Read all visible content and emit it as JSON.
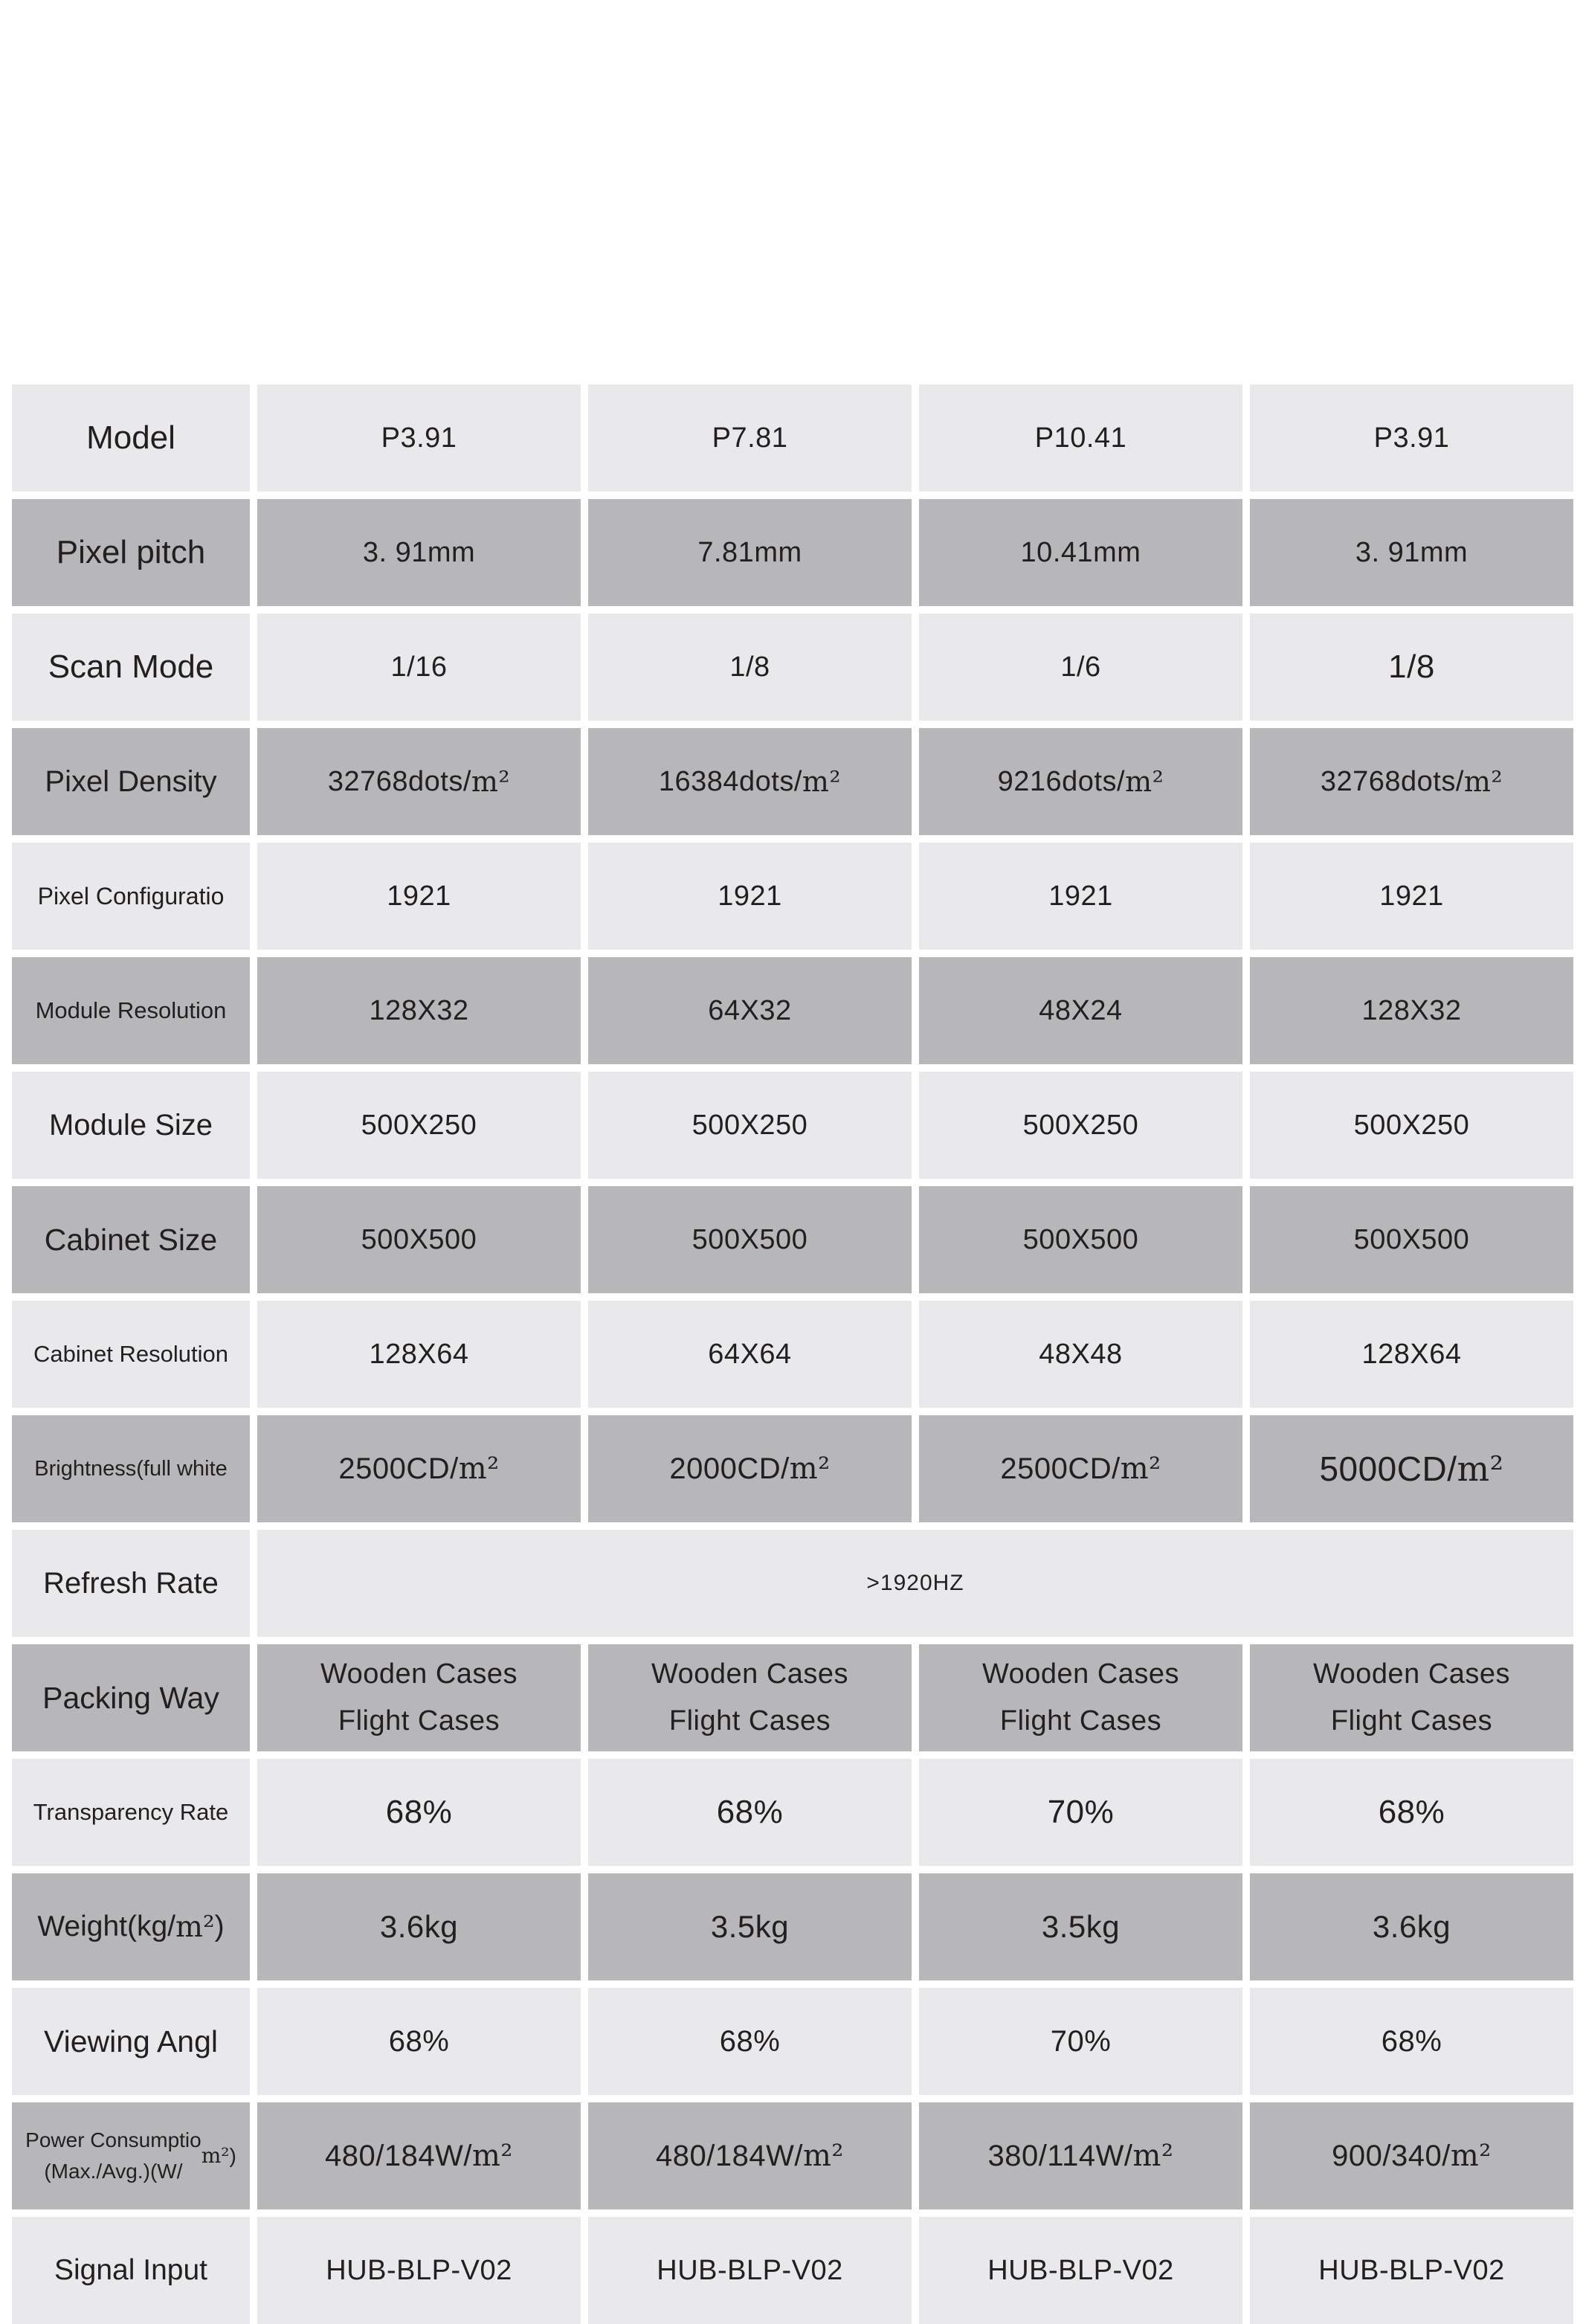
{
  "table": {
    "columns": 5,
    "colors": {
      "row_light": "#e9e9eb",
      "row_dark": "#b7b7b9",
      "text": "#231f20",
      "background": "#ffffff"
    },
    "rows": [
      {
        "label": "Model",
        "values": [
          "P3.91",
          "P7.81",
          "P10.41",
          "P3.91"
        ]
      },
      {
        "label": "Pixel pitch",
        "values": [
          "3. 91mm",
          "7.81mm",
          "10.41mm",
          "3. 91mm"
        ]
      },
      {
        "label": "Scan Mode",
        "values": [
          "1/16",
          "1/8",
          "1/6",
          "1/8"
        ]
      },
      {
        "label": "Pixel Density",
        "values": [
          "32768dots/m²",
          "16384dots/m²",
          "9216dots/m²",
          "32768dots/m²"
        ]
      },
      {
        "label": "Pixel Configuratio",
        "values": [
          "1921",
          "1921",
          "1921",
          "1921"
        ]
      },
      {
        "label": "Module Resolution",
        "values": [
          "128X32",
          "64X32",
          "48X24",
          "128X32"
        ]
      },
      {
        "label": "Module Size",
        "values": [
          "500X250",
          "500X250",
          "500X250",
          "500X250"
        ]
      },
      {
        "label": "Cabinet Size",
        "values": [
          "500X500",
          "500X500",
          "500X500",
          "500X500"
        ]
      },
      {
        "label": "Cabinet Resolution",
        "values": [
          "128X64",
          "64X64",
          "48X48",
          "128X64"
        ]
      },
      {
        "label": "Brightness(full white",
        "values": [
          "2500CD/m²",
          "2000CD/m²",
          "2500CD/m²",
          "5000CD/m²"
        ]
      },
      {
        "label": "Refresh Rate",
        "merged_value": ">1920HZ"
      },
      {
        "label": "Packing Way",
        "values": [
          "Wooden Cases\nFlight Cases",
          "Wooden Cases\nFlight Cases",
          "Wooden Cases\nFlight Cases",
          "Wooden Cases\nFlight Cases"
        ]
      },
      {
        "label": "Transparency Rate",
        "values": [
          "68%",
          "68%",
          "70%",
          "68%"
        ]
      },
      {
        "label": "Weight(kg/m²)",
        "values": [
          "3.6kg",
          "3.5kg",
          "3.5kg",
          "3.6kg"
        ]
      },
      {
        "label": "Viewing Angl",
        "values": [
          "68%",
          "68%",
          "70%",
          "68%"
        ]
      },
      {
        "label": "Power Consumptio\n(Max./Avg.)(W/m²)",
        "values": [
          "480/184W/m²",
          "480/184W/m²",
          "380/114W/m²",
          "900/340/m²"
        ]
      },
      {
        "label": "Signal Input",
        "values": [
          "HUB-BLP-V02",
          "HUB-BLP-V02",
          "HUB-BLP-V02",
          "HUB-BLP-V02"
        ]
      }
    ]
  }
}
